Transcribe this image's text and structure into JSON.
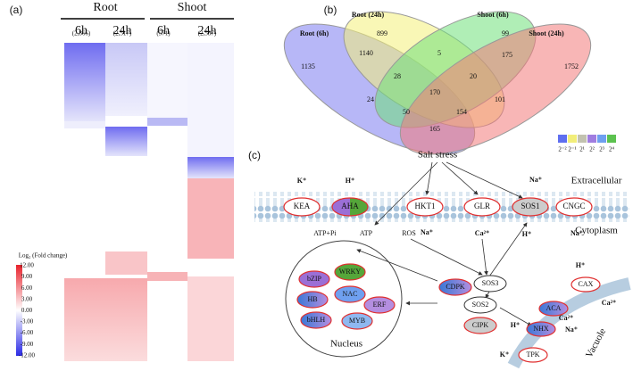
{
  "panels": {
    "a": {
      "label": "(a)",
      "groups": [
        "Root",
        "Shoot"
      ],
      "columns": [
        {
          "time": "6h",
          "count": "(2,866)"
        },
        {
          "time": "24h",
          "count": "(2,517)"
        },
        {
          "time": "6h",
          "count": "(571)"
        },
        {
          "time": "24h",
          "count": "(2,587)"
        }
      ],
      "scale": {
        "title": "Log₂ (Fold change)",
        "ticks": [
          "12.00",
          "9.00",
          "6.00",
          "3.00",
          "0.00",
          "-3.00",
          "-6.00",
          "-9.00",
          "-12.00"
        ]
      }
    },
    "b": {
      "label": "(b)",
      "sets": [
        "Root (6h)",
        "Root (24h)",
        "Shoot (6h)",
        "Shoot (24h)"
      ],
      "regions": [
        1135,
        899,
        99,
        1752,
        1140,
        5,
        175,
        28,
        20,
        170,
        24,
        101,
        50,
        154,
        165
      ],
      "legend": [
        "2⁻²",
        "2⁻¹",
        "2¹",
        "2²",
        "2³",
        "2⁴"
      ]
    },
    "c": {
      "label": "(c)",
      "stimulus": "Salt stress",
      "outside": "Extracellular",
      "inside": "Cytoplasm",
      "transporters": [
        "KEA",
        "AHA",
        "HKT1",
        "GLR",
        "SOS1",
        "CNGC"
      ],
      "ions": [
        "K⁺",
        "H⁺",
        "Na⁺",
        "Ca²⁺",
        "Na⁺",
        "H⁺",
        "Na⁺",
        "H⁺",
        "Ca²⁺",
        "Ca²⁺",
        "H⁺",
        "Na⁺",
        "K⁺"
      ],
      "metabolites": [
        "ATP+Pi",
        "ATP",
        "ROS"
      ],
      "nucleus": {
        "title": "Nucleus",
        "factors": [
          "WRKY",
          "bZIP",
          "NAC",
          "HB",
          "ERF",
          "bHLH",
          "MYB"
        ]
      },
      "kinases": [
        "CDPK",
        "SOS3",
        "SOS2",
        "CIPK"
      ],
      "vacuole": {
        "title": "Vacuole",
        "transporters": [
          "CAX",
          "ACA",
          "NHX",
          "TPK"
        ]
      }
    }
  }
}
